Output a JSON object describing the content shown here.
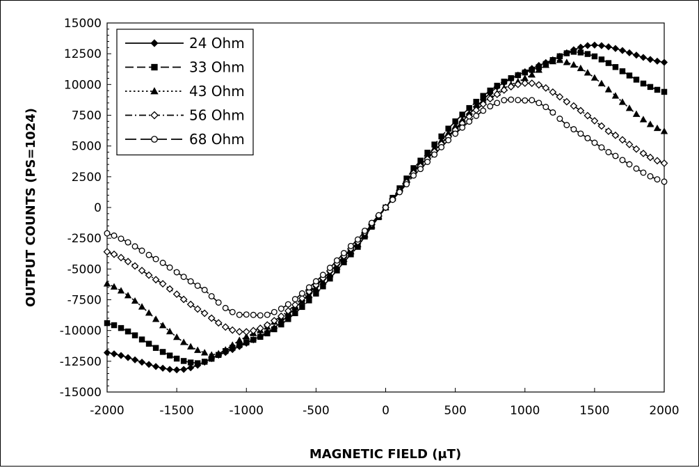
{
  "chart_data": {
    "type": "line",
    "xlabel": "MAGNETIC FIELD (μT)",
    "ylabel": "OUTPUT COUNTS (PS=1024)",
    "xlim": [
      -2000,
      2000
    ],
    "ylim": [
      -15000,
      15000
    ],
    "x_ticks": [
      -2000,
      -1500,
      -1000,
      -500,
      0,
      500,
      1000,
      1500,
      2000
    ],
    "y_ticks": [
      -15000,
      -12500,
      -10000,
      -7500,
      -5000,
      -2500,
      0,
      2500,
      5000,
      7500,
      10000,
      12500,
      15000
    ],
    "x_tick_labels": [
      "-2000",
      "-1500",
      "-1000",
      "-500",
      "0",
      "500",
      "1000",
      "1500",
      "2000"
    ],
    "y_tick_labels": [
      "-15000",
      "-12500",
      "-10000",
      "-7500",
      "-5000",
      "-2500",
      "0",
      "2500",
      "5000",
      "7500",
      "10000",
      "12500",
      "15000"
    ],
    "grid": false,
    "legend_position": "top-left",
    "series": [
      {
        "name": "24 Ohm",
        "marker": "diamond-filled",
        "dash": "solid",
        "points": [
          [
            -2000,
            -11800
          ],
          [
            -1500,
            -13200
          ],
          [
            -1200,
            -12000
          ],
          [
            -800,
            -9800
          ],
          [
            -500,
            -6400
          ],
          [
            -200,
            -2900
          ],
          [
            0,
            0
          ],
          [
            200,
            2900
          ],
          [
            500,
            6400
          ],
          [
            800,
            9800
          ],
          [
            1200,
            12000
          ],
          [
            1500,
            13200
          ],
          [
            2000,
            11800
          ]
        ]
      },
      {
        "name": "33 Ohm",
        "marker": "square-filled",
        "dash": "dashed",
        "points": [
          [
            -2000,
            -9400
          ],
          [
            -1400,
            -12600
          ],
          [
            -1100,
            -11400
          ],
          [
            -800,
            -9900
          ],
          [
            -500,
            -7000
          ],
          [
            -200,
            -3200
          ],
          [
            0,
            0
          ],
          [
            200,
            3200
          ],
          [
            500,
            7000
          ],
          [
            800,
            9900
          ],
          [
            1100,
            11400
          ],
          [
            1400,
            12600
          ],
          [
            2000,
            9400
          ]
        ]
      },
      {
        "name": "43 Ohm",
        "marker": "triangle-filled",
        "dash": "dotted",
        "points": [
          [
            -2000,
            -6200
          ],
          [
            -1300,
            -11800
          ],
          [
            -1000,
            -10500
          ],
          [
            -800,
            -9300
          ],
          [
            -500,
            -6600
          ],
          [
            -200,
            -3000
          ],
          [
            0,
            0
          ],
          [
            200,
            3000
          ],
          [
            500,
            6600
          ],
          [
            800,
            9300
          ],
          [
            1000,
            10500
          ],
          [
            1300,
            11800
          ],
          [
            2000,
            6200
          ]
        ]
      },
      {
        "name": "56 Ohm",
        "marker": "diamond-open",
        "dash": "dash-dot",
        "points": [
          [
            -2000,
            -3600
          ],
          [
            -1600,
            -6200
          ],
          [
            -1300,
            -8600
          ],
          [
            -1050,
            -10100
          ],
          [
            -800,
            -9200
          ],
          [
            -500,
            -6300
          ],
          [
            -200,
            -2800
          ],
          [
            0,
            0
          ],
          [
            200,
            2800
          ],
          [
            500,
            6300
          ],
          [
            800,
            9200
          ],
          [
            1050,
            10100
          ],
          [
            1300,
            8600
          ],
          [
            1600,
            6200
          ],
          [
            2000,
            3600
          ]
        ]
      },
      {
        "name": "68 Ohm",
        "marker": "circle-open",
        "dash": "long-dash",
        "points": [
          [
            -2000,
            -2100
          ],
          [
            -1600,
            -4500
          ],
          [
            -1300,
            -6700
          ],
          [
            -1100,
            -8500
          ],
          [
            -1000,
            -8700
          ],
          [
            -800,
            -8500
          ],
          [
            -500,
            -6000
          ],
          [
            -200,
            -2600
          ],
          [
            0,
            0
          ],
          [
            200,
            2600
          ],
          [
            500,
            6000
          ],
          [
            800,
            8500
          ],
          [
            1000,
            8700
          ],
          [
            1100,
            8500
          ],
          [
            1300,
            6700
          ],
          [
            1600,
            4500
          ],
          [
            2000,
            2100
          ]
        ]
      }
    ]
  }
}
